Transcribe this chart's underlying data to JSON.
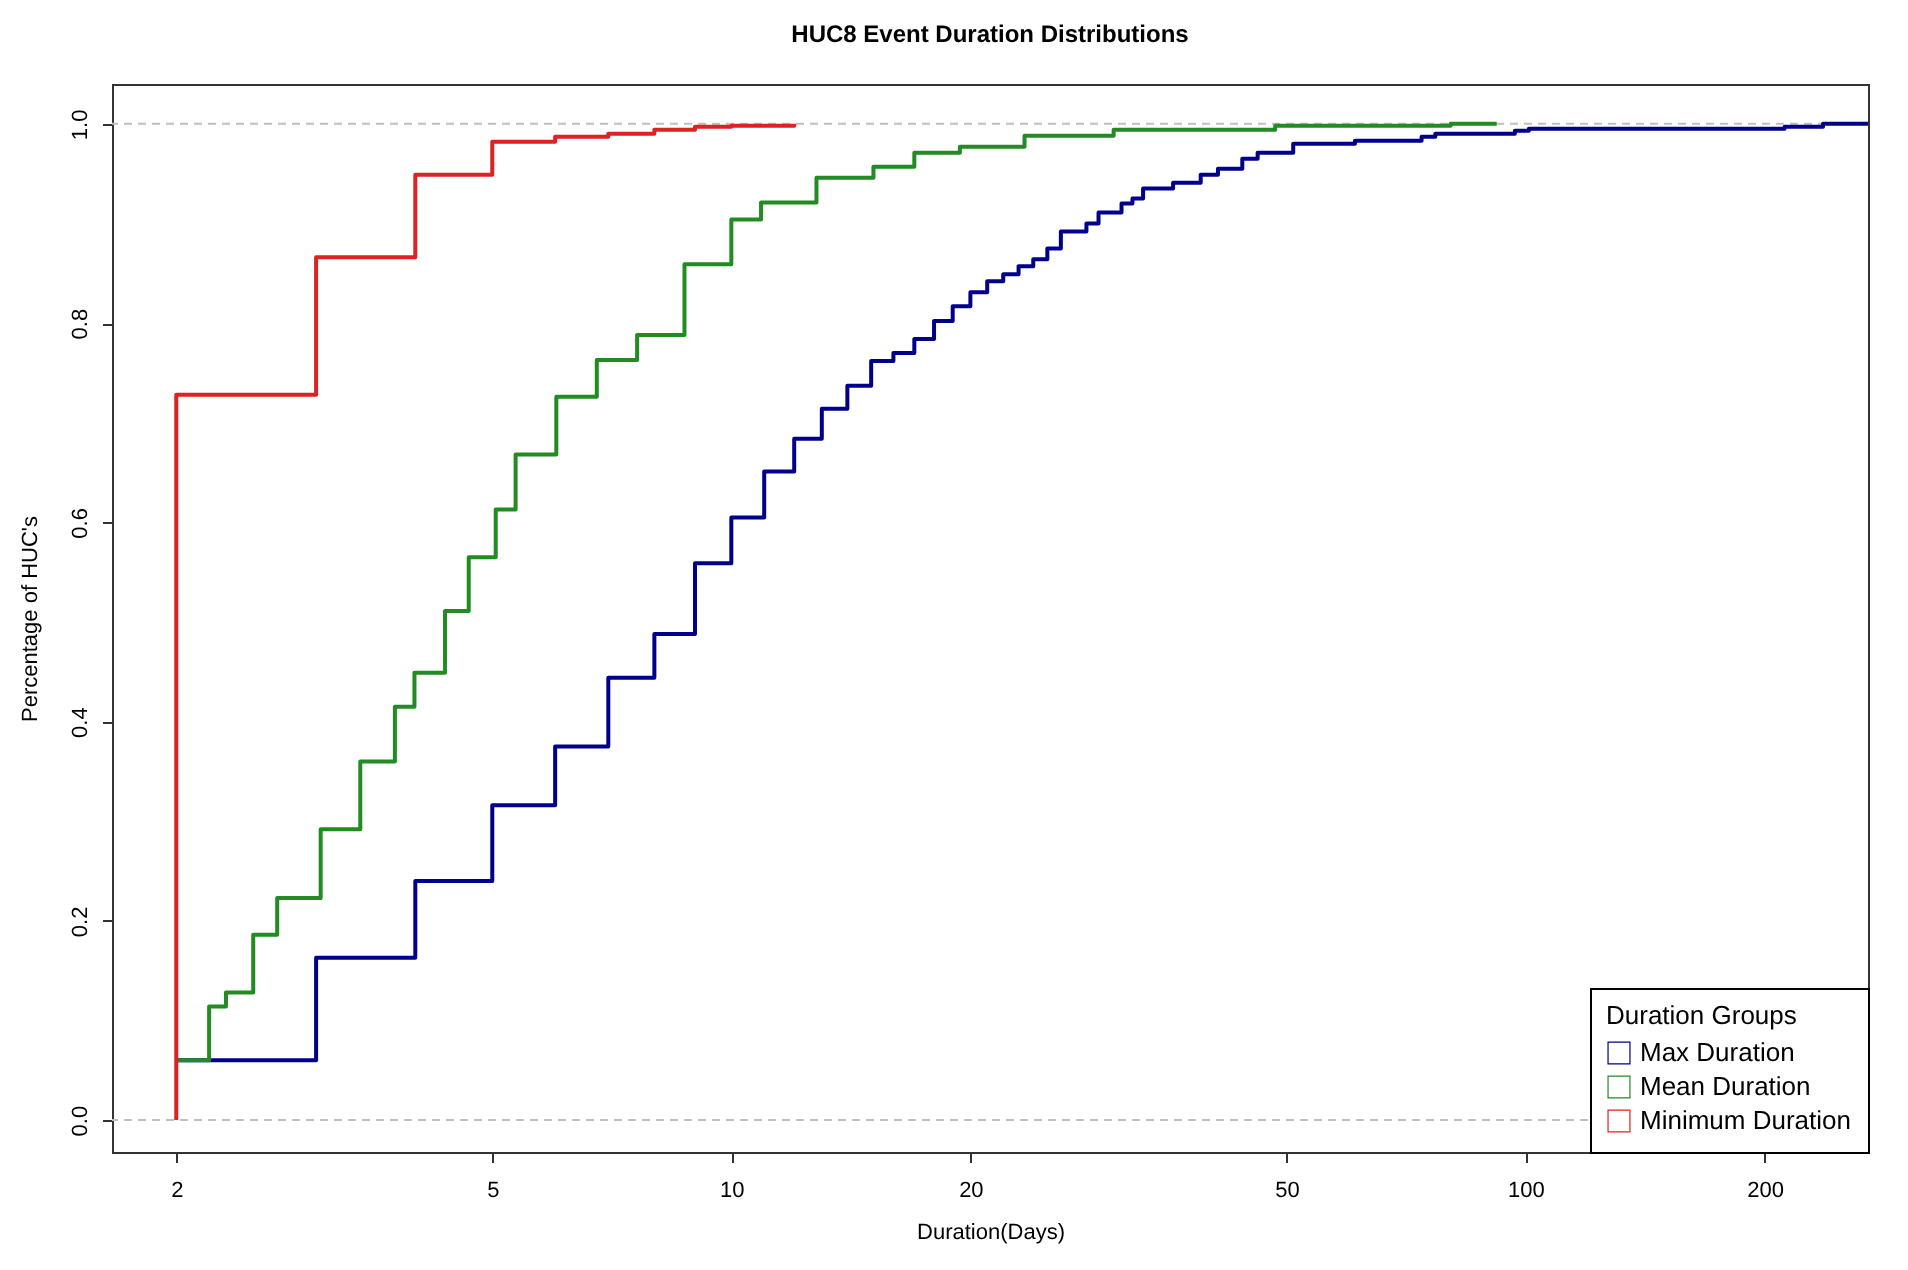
{
  "chart_data": {
    "type": "step",
    "title": "HUC8 Event Duration Distributions",
    "xlabel": "Duration(Days)",
    "ylabel": "Percentage of HUC's",
    "legend_title": "Duration Groups",
    "legend": "bottom right",
    "log": "x",
    "grid": false,
    "line_style": "solid",
    "xlim": [
      1.66,
      270
    ],
    "xticks": [
      2,
      5,
      10,
      20,
      50,
      100,
      200
    ],
    "ylim": [
      -0.032,
      1.04
    ],
    "yticks": [
      {
        "value": 0,
        "label": "0.0"
      },
      {
        "value": 0.2,
        "label": "0.2"
      },
      {
        "value": 0.4,
        "label": "0.4"
      },
      {
        "value": 0.6,
        "label": "0.6"
      },
      {
        "value": 0.8,
        "label": "0.8"
      },
      {
        "value": 1,
        "label": "1.0"
      }
    ],
    "ref_lines": [
      {
        "axis": "y",
        "value": 0,
        "color": "#bebebe",
        "line_style": "dashed"
      },
      {
        "axis": "y",
        "value": 1,
        "color": "#bebebe",
        "line_style": "dashed"
      }
    ],
    "series": [
      {
        "name": "Max Duration",
        "color": "#00008b",
        "x": [
          2,
          3,
          4,
          5,
          6,
          7,
          8,
          9,
          10,
          11,
          12,
          13,
          14,
          15,
          16,
          17,
          18,
          19,
          20,
          21,
          22,
          23,
          24,
          25,
          26,
          28,
          29,
          31,
          32,
          33,
          36,
          39,
          41,
          44,
          46,
          51,
          61,
          74,
          77,
          97,
          101,
          212,
          237,
          270
        ],
        "values": [
          0.06,
          0.163,
          0.24,
          0.316,
          0.375,
          0.444,
          0.488,
          0.559,
          0.605,
          0.651,
          0.684,
          0.714,
          0.737,
          0.762,
          0.77,
          0.784,
          0.802,
          0.817,
          0.831,
          0.842,
          0.849,
          0.857,
          0.864,
          0.875,
          0.892,
          0.9,
          0.911,
          0.92,
          0.925,
          0.935,
          0.941,
          0.949,
          0.955,
          0.965,
          0.971,
          0.98,
          0.983,
          0.987,
          0.99,
          0.993,
          0.995,
          0.997,
          1.0,
          1.0
        ]
      },
      {
        "name": "Mean Duration",
        "color": "#228b22",
        "x": [
          2,
          2.2,
          2.31,
          2.5,
          2.68,
          3.04,
          3.41,
          3.77,
          3.99,
          4.36,
          4.67,
          5.05,
          5.35,
          6.02,
          6.77,
          7.61,
          8.73,
          10,
          10.9,
          12.8,
          15.1,
          17,
          19.4,
          23.4,
          30.3,
          48.4,
          80.5,
          92
        ],
        "values": [
          0.06,
          0.114,
          0.128,
          0.186,
          0.223,
          0.292,
          0.36,
          0.415,
          0.449,
          0.511,
          0.565,
          0.613,
          0.668,
          0.726,
          0.763,
          0.788,
          0.859,
          0.904,
          0.921,
          0.946,
          0.957,
          0.971,
          0.977,
          0.988,
          0.994,
          0.998,
          1.0,
          1.0
        ]
      },
      {
        "name": "Minimum Duration",
        "color": "#dd2222",
        "x": [
          2,
          2,
          3,
          4,
          5,
          6,
          7,
          8,
          9,
          10,
          12
        ],
        "values": [
          0,
          0.728,
          0.866,
          0.949,
          0.982,
          0.987,
          0.99,
          0.994,
          0.997,
          0.998,
          1.0
        ]
      }
    ]
  }
}
